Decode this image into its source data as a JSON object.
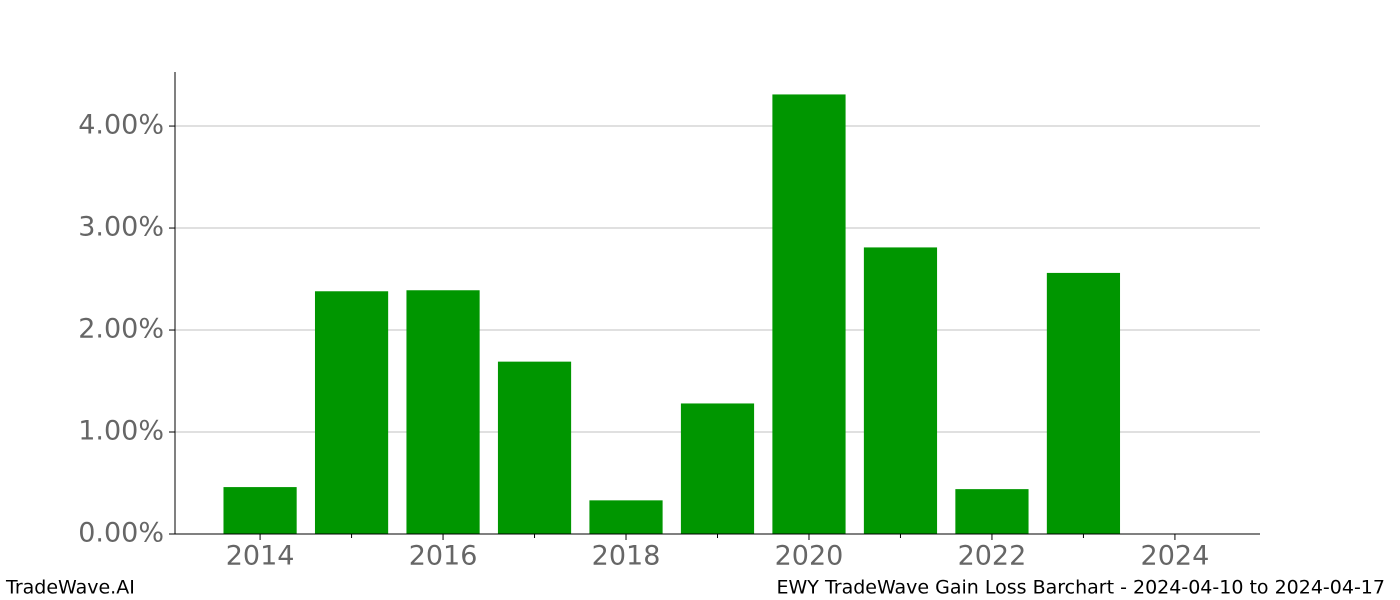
{
  "chart_data": {
    "type": "bar",
    "x": [
      2014,
      2015,
      2016,
      2017,
      2018,
      2019,
      2020,
      2021,
      2022,
      2023
    ],
    "values": [
      0.46,
      2.38,
      2.39,
      1.69,
      0.33,
      1.28,
      4.31,
      2.81,
      0.44,
      2.56
    ],
    "color": "#009600",
    "xlim": [
      2013.07,
      2024.93
    ],
    "xticks": [
      2014,
      2016,
      2018,
      2020,
      2022,
      2024
    ],
    "ylim": [
      0,
      4.53
    ],
    "yticks": [
      {
        "value": 0,
        "label": "0.00%"
      },
      {
        "value": 1,
        "label": "1.00%"
      },
      {
        "value": 2,
        "label": "2.00%"
      },
      {
        "value": 3,
        "label": "3.00%"
      },
      {
        "value": 4,
        "label": "4.00%"
      }
    ],
    "grid": true
  },
  "footer": {
    "left": "TradeWave.AI",
    "right": "EWY TradeWave Gain Loss Barchart - 2024-04-10 to 2024-04-17"
  }
}
